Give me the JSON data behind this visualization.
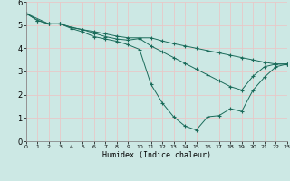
{
  "xlabel": "Humidex (Indice chaleur)",
  "bg_color": "#cce8e4",
  "grid_color": "#e8c8c8",
  "line_color": "#1a6b5a",
  "xlim": [
    0,
    23
  ],
  "ylim": [
    0,
    6
  ],
  "xticks": [
    0,
    1,
    2,
    3,
    4,
    5,
    6,
    7,
    8,
    9,
    10,
    11,
    12,
    13,
    14,
    15,
    16,
    17,
    18,
    19,
    20,
    21,
    22,
    23
  ],
  "yticks": [
    0,
    1,
    2,
    3,
    4,
    5,
    6
  ],
  "lines": [
    {
      "x": [
        0,
        1,
        2,
        3,
        4,
        5,
        6,
        7,
        8,
        9,
        10,
        11,
        12,
        13,
        14,
        15,
        16,
        17,
        18,
        19,
        20,
        21,
        22,
        23
      ],
      "y": [
        5.5,
        5.2,
        5.05,
        5.05,
        4.9,
        4.8,
        4.72,
        4.62,
        4.52,
        4.45,
        4.45,
        4.45,
        4.32,
        4.2,
        4.1,
        4.0,
        3.9,
        3.8,
        3.7,
        3.6,
        3.5,
        3.4,
        3.32,
        3.32
      ]
    },
    {
      "x": [
        0,
        1,
        2,
        3,
        4,
        5,
        6,
        7,
        8,
        9,
        10,
        11,
        12,
        13,
        14,
        15,
        16,
        17,
        18,
        19,
        20,
        21,
        22,
        23
      ],
      "y": [
        5.5,
        5.2,
        5.05,
        5.05,
        4.9,
        4.8,
        4.65,
        4.5,
        4.4,
        4.35,
        4.42,
        4.1,
        3.85,
        3.6,
        3.35,
        3.1,
        2.85,
        2.6,
        2.35,
        2.2,
        2.8,
        3.2,
        3.32,
        3.32
      ]
    },
    {
      "x": [
        0,
        2,
        3,
        4,
        5,
        6,
        7,
        8,
        9,
        10,
        11,
        12,
        13,
        14,
        15,
        16,
        17,
        18,
        19,
        20,
        21,
        22,
        23
      ],
      "y": [
        5.5,
        5.05,
        5.05,
        4.85,
        4.7,
        4.5,
        4.4,
        4.3,
        4.15,
        3.95,
        2.45,
        1.65,
        1.05,
        0.65,
        0.48,
        1.05,
        1.1,
        1.4,
        1.28,
        2.2,
        2.75,
        3.2,
        3.32
      ]
    }
  ]
}
